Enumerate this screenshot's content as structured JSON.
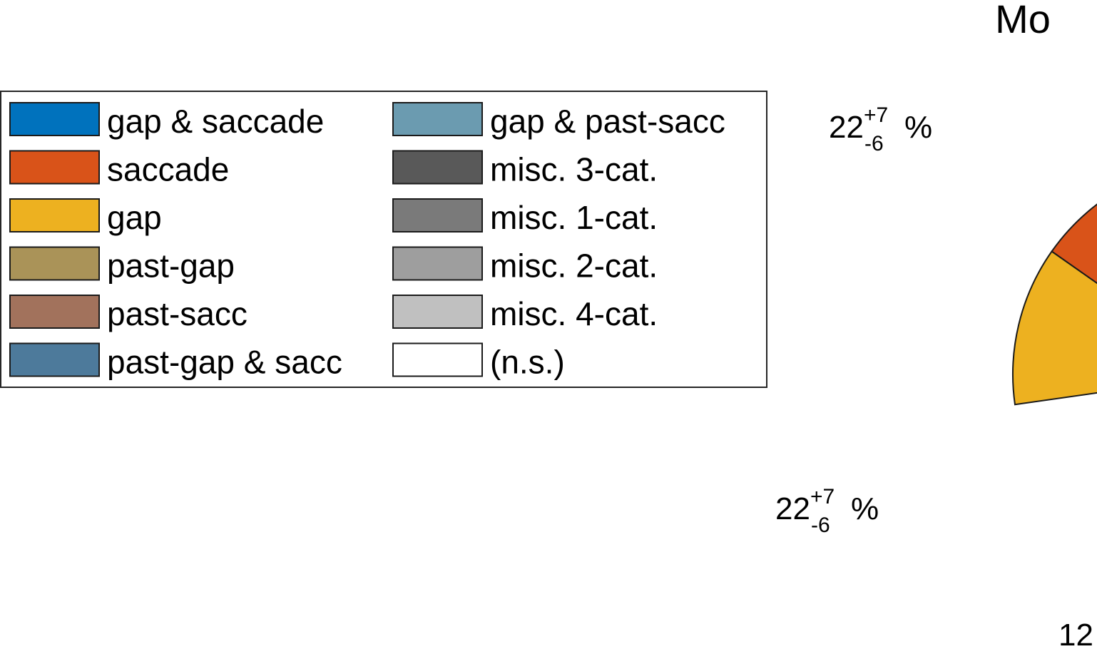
{
  "chart_data": {
    "type": "pie",
    "title": "Mo",
    "legend": {
      "placement": "left",
      "columns": 2,
      "entries": [
        {
          "label": "gap & saccade",
          "color": "#0072BD"
        },
        {
          "label": "saccade",
          "color": "#D95319"
        },
        {
          "label": "gap",
          "color": "#EDB120"
        },
        {
          "label": "past-gap",
          "color": "#AA9358"
        },
        {
          "label": "past-sacc",
          "color": "#A2725C"
        },
        {
          "label": "past-gap & sacc",
          "color": "#4D7A9B"
        },
        {
          "label": "gap & past-sacc",
          "color": "#6B9BB0"
        },
        {
          "label": "misc. 3-cat.",
          "color": "#595959"
        },
        {
          "label": "misc. 1-cat.",
          "color": "#7A7A7A"
        },
        {
          "label": "misc. 2-cat.",
          "color": "#9E9E9E"
        },
        {
          "label": "misc. 4-cat.",
          "color": "#C0C0C0"
        },
        {
          "label": "(n.s.)",
          "color": "#FFFFFF"
        }
      ]
    },
    "slices": [
      {
        "category": "gap & saccade",
        "value": 22,
        "ci_plus": 7,
        "ci_minus": 6,
        "label_main": "22",
        "label_sup": "+7",
        "label_sub": "-6",
        "label_unit": "%"
      },
      {
        "category": "saccade",
        "value": 22,
        "ci_plus": 7,
        "ci_minus": 6,
        "label_main": "22",
        "label_sup": "+7",
        "label_sub": "-6",
        "label_unit": "%"
      },
      {
        "category": "gap",
        "value": 12,
        "label_main": "12"
      }
    ]
  }
}
